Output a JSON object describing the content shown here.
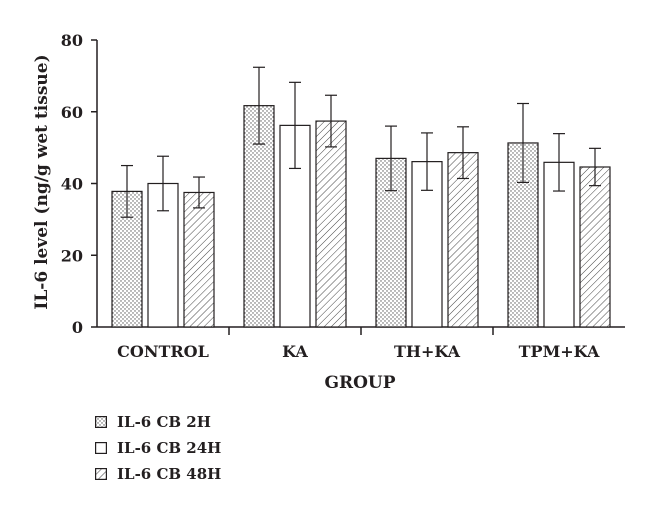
{
  "chart_data": {
    "type": "bar",
    "xlabel": "GROUP",
    "ylabel": "IL-6 level (ng/g wet tissue)",
    "ylim": [
      0,
      80
    ],
    "yticks": [
      0,
      20,
      40,
      60,
      80
    ],
    "grid": false,
    "legend_position": "bottom-left",
    "categories": [
      "CONTROL",
      "KA",
      "TH+KA",
      "TPM+KA"
    ],
    "series": [
      {
        "name": "IL-6 CB 2H",
        "pattern": "dots",
        "values": [
          37.8,
          61.7,
          47.0,
          51.3
        ],
        "errors": [
          7.2,
          10.7,
          9.0,
          11.0
        ]
      },
      {
        "name": "IL-6 CB 24H",
        "pattern": "blank",
        "values": [
          40.0,
          56.2,
          46.1,
          45.9
        ],
        "errors": [
          7.6,
          12.0,
          8.0,
          8.0
        ]
      },
      {
        "name": "IL-6 CB 48H",
        "pattern": "hatch",
        "values": [
          37.5,
          57.4,
          48.6,
          44.6
        ],
        "errors": [
          4.3,
          7.2,
          7.2,
          5.2
        ]
      }
    ]
  }
}
